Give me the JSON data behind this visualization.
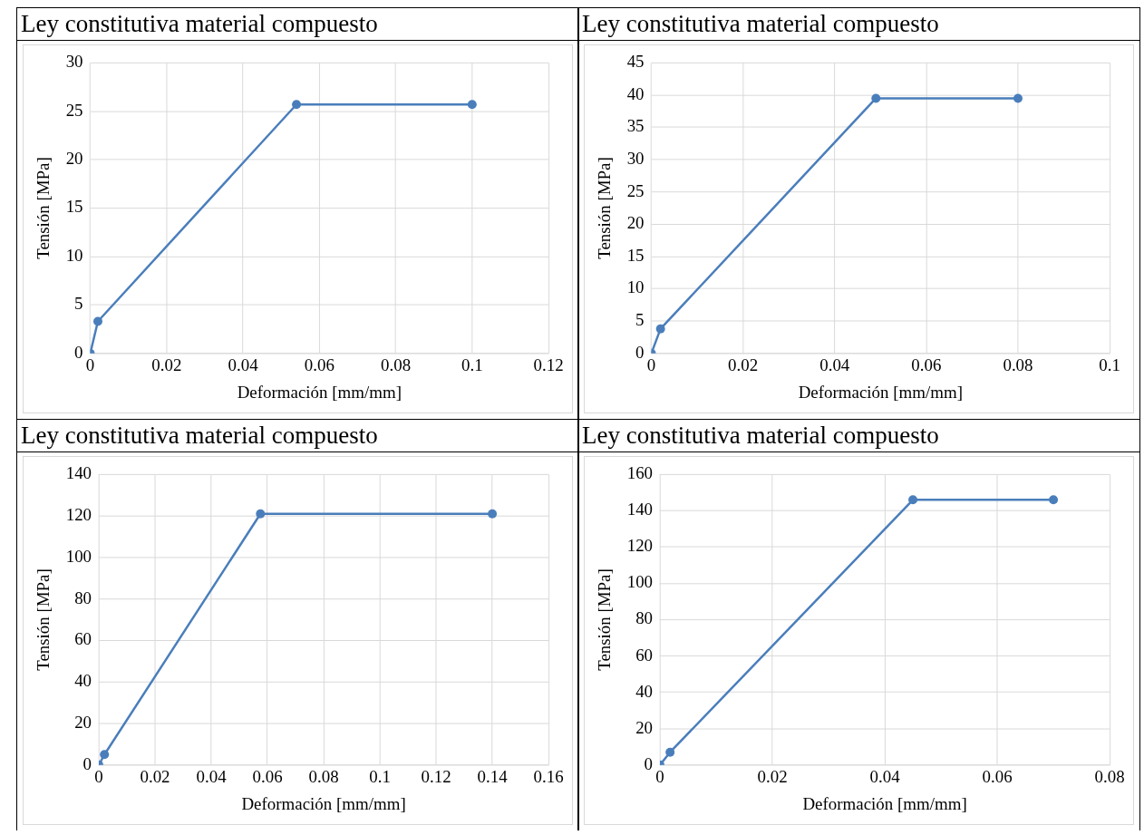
{
  "chart_data": [
    {
      "type": "line",
      "title": "Ley constitutiva material compuesto",
      "xlabel": "Deformación [mm/mm]",
      "ylabel": "Tensión [MPa]",
      "x": [
        0,
        0.002,
        0.054,
        0.1
      ],
      "series": [
        {
          "color": "#4a7ebb",
          "values": [
            0,
            3.3,
            25.7,
            25.7
          ]
        }
      ],
      "xlim": [
        0,
        0.12
      ],
      "xticks": [
        0,
        0.02,
        0.04,
        0.06,
        0.08,
        0.1,
        0.12
      ],
      "ylim": [
        0,
        30
      ],
      "yticks": [
        0,
        5,
        10,
        15,
        20,
        25,
        30
      ],
      "grid": true,
      "marker": "circle",
      "line_style": "solid",
      "legend": false
    },
    {
      "type": "line",
      "title": "Ley constitutiva material compuesto",
      "xlabel": "Deformación [mm/mm]",
      "ylabel": "Tensión [MPa]",
      "x": [
        0,
        0.002,
        0.049,
        0.08
      ],
      "series": [
        {
          "color": "#4a7ebb",
          "values": [
            0,
            3.8,
            39.5,
            39.5
          ]
        }
      ],
      "xlim": [
        0,
        0.1
      ],
      "xticks": [
        0,
        0.02,
        0.04,
        0.06,
        0.08,
        0.1
      ],
      "ylim": [
        0,
        45
      ],
      "yticks": [
        0,
        5,
        10,
        15,
        20,
        25,
        30,
        35,
        40,
        45
      ],
      "grid": true,
      "marker": "circle",
      "line_style": "solid",
      "legend": false
    },
    {
      "type": "line",
      "title": "Ley constitutiva material compuesto",
      "xlabel": "Deformación [mm/mm]",
      "ylabel": "Tensión [MPa]",
      "x": [
        0,
        0.002,
        0.0575,
        0.14
      ],
      "series": [
        {
          "color": "#4a7ebb",
          "values": [
            0,
            5,
            121,
            121
          ]
        }
      ],
      "xlim": [
        0,
        0.16
      ],
      "xticks": [
        0,
        0.02,
        0.04,
        0.06,
        0.08,
        0.1,
        0.12,
        0.14,
        0.16
      ],
      "ylim": [
        0,
        140
      ],
      "yticks": [
        0,
        20,
        40,
        60,
        80,
        100,
        120,
        140
      ],
      "grid": true,
      "marker": "circle",
      "line_style": "solid",
      "legend": false
    },
    {
      "type": "line",
      "title": "Ley constitutiva material compuesto",
      "xlabel": "Deformación [mm/mm]",
      "ylabel": "Tensión [MPa]",
      "x": [
        0,
        0.0018,
        0.045,
        0.07
      ],
      "series": [
        {
          "color": "#4a7ebb",
          "values": [
            0,
            7,
            146,
            146
          ]
        }
      ],
      "xlim": [
        0,
        0.08
      ],
      "xticks": [
        0,
        0.02,
        0.04,
        0.06,
        0.08
      ],
      "ylim": [
        0,
        160
      ],
      "yticks": [
        0,
        20,
        40,
        60,
        80,
        100,
        120,
        140,
        160
      ],
      "grid": true,
      "marker": "circle",
      "line_style": "solid",
      "legend": false
    }
  ]
}
